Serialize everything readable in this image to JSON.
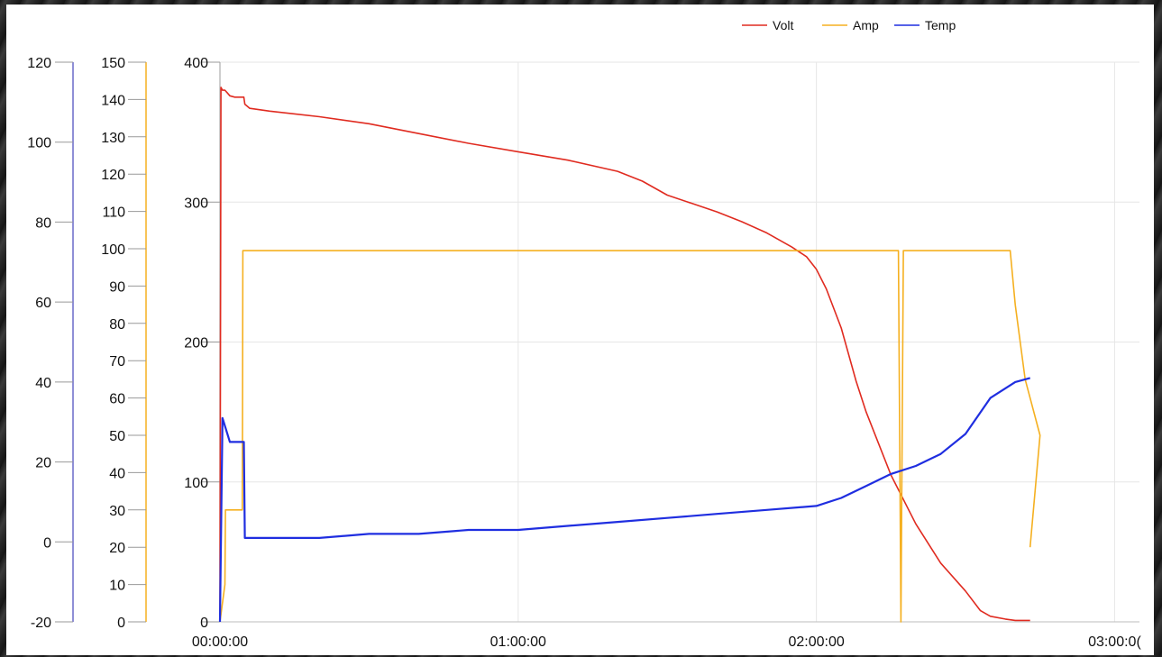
{
  "chart_data": {
    "type": "line",
    "legend": {
      "placement": "top-right",
      "entries": [
        {
          "name": "Volt",
          "color": "#e02b20"
        },
        {
          "name": "Amp",
          "color": "#f5b020"
        },
        {
          "name": "Temp",
          "color": "#1f2ee0"
        }
      ]
    },
    "x_axis": {
      "unit": "time hh:mm:ss",
      "range_min": [
        0,
        185
      ],
      "ticks": [
        "00:00:00",
        "01:00:00",
        "02:00:00",
        "03:00:0("
      ],
      "tick_values_min": [
        0,
        60,
        120,
        180
      ]
    },
    "y_axes": [
      {
        "id": "temp",
        "color": "#6a6ac8",
        "ylim": [
          -20,
          120
        ],
        "ticks": [
          "-20",
          "0",
          "20",
          "40",
          "60",
          "80",
          "100",
          "120"
        ]
      },
      {
        "id": "amp",
        "color": "#f5b020",
        "ylim": [
          0,
          150
        ],
        "ticks": [
          "0",
          "10",
          "20",
          "30",
          "40",
          "50",
          "60",
          "70",
          "80",
          "90",
          "100",
          "110",
          "120",
          "130",
          "140",
          "150"
        ]
      },
      {
        "id": "volt",
        "color": "#111111",
        "ylim": [
          0,
          400
        ],
        "ticks": [
          "0",
          "100",
          "200",
          "300",
          "400"
        ]
      }
    ],
    "grid": true,
    "series": [
      {
        "name": "Volt",
        "axis": "volt",
        "color": "#e02b20",
        "x": [
          0,
          0.2,
          0.5,
          1,
          1.5,
          2,
          3,
          4.8,
          5,
          6,
          10,
          20,
          30,
          40,
          50,
          60,
          70,
          80,
          85,
          90,
          95,
          100,
          105,
          110,
          115,
          118,
          120,
          122,
          125,
          128,
          130,
          135,
          140,
          145,
          150,
          153,
          155,
          158,
          160,
          163
        ],
        "y": [
          0,
          382,
          380,
          380,
          378,
          376,
          375,
          375,
          370,
          367,
          365,
          361,
          356,
          349,
          342,
          336,
          330,
          322,
          315,
          305,
          299,
          293,
          286,
          278,
          268,
          261,
          252,
          238,
          210,
          172,
          150,
          105,
          70,
          42,
          22,
          8,
          4,
          2,
          1,
          1
        ]
      },
      {
        "name": "Amp",
        "axis": "amp",
        "color": "#f5b020",
        "x": [
          0,
          1,
          1.1,
          2,
          4.5,
          4.6,
          10,
          30,
          60,
          100,
          130,
          136.5,
          137,
          137.5,
          150,
          152,
          154,
          155,
          156,
          157,
          158,
          159,
          160,
          162,
          165,
          163
        ],
        "y": [
          0,
          10,
          30,
          30,
          30,
          99.5,
          99.5,
          99.5,
          99.5,
          99.5,
          99.5,
          99.5,
          0,
          99.5,
          99.5,
          99.5,
          99.5,
          99.5,
          99.5,
          99.5,
          99.5,
          99.5,
          85,
          65,
          50,
          20
        ]
      },
      {
        "name": "Temp",
        "axis": "temp",
        "color": "#1f2ee0",
        "x": [
          0,
          0.5,
          1,
          2,
          3,
          4.8,
          5,
          10,
          20,
          30,
          40,
          50,
          60,
          70,
          80,
          90,
          100,
          110,
          120,
          125,
          130,
          135,
          140,
          145,
          150,
          155,
          160,
          163
        ],
        "y": [
          -20,
          31,
          29,
          25,
          25,
          25,
          1,
          1,
          1,
          2,
          2,
          3,
          3,
          4,
          5,
          6,
          7,
          8,
          9,
          11,
          14,
          17,
          19,
          22,
          27,
          36,
          40,
          41
        ]
      }
    ]
  }
}
